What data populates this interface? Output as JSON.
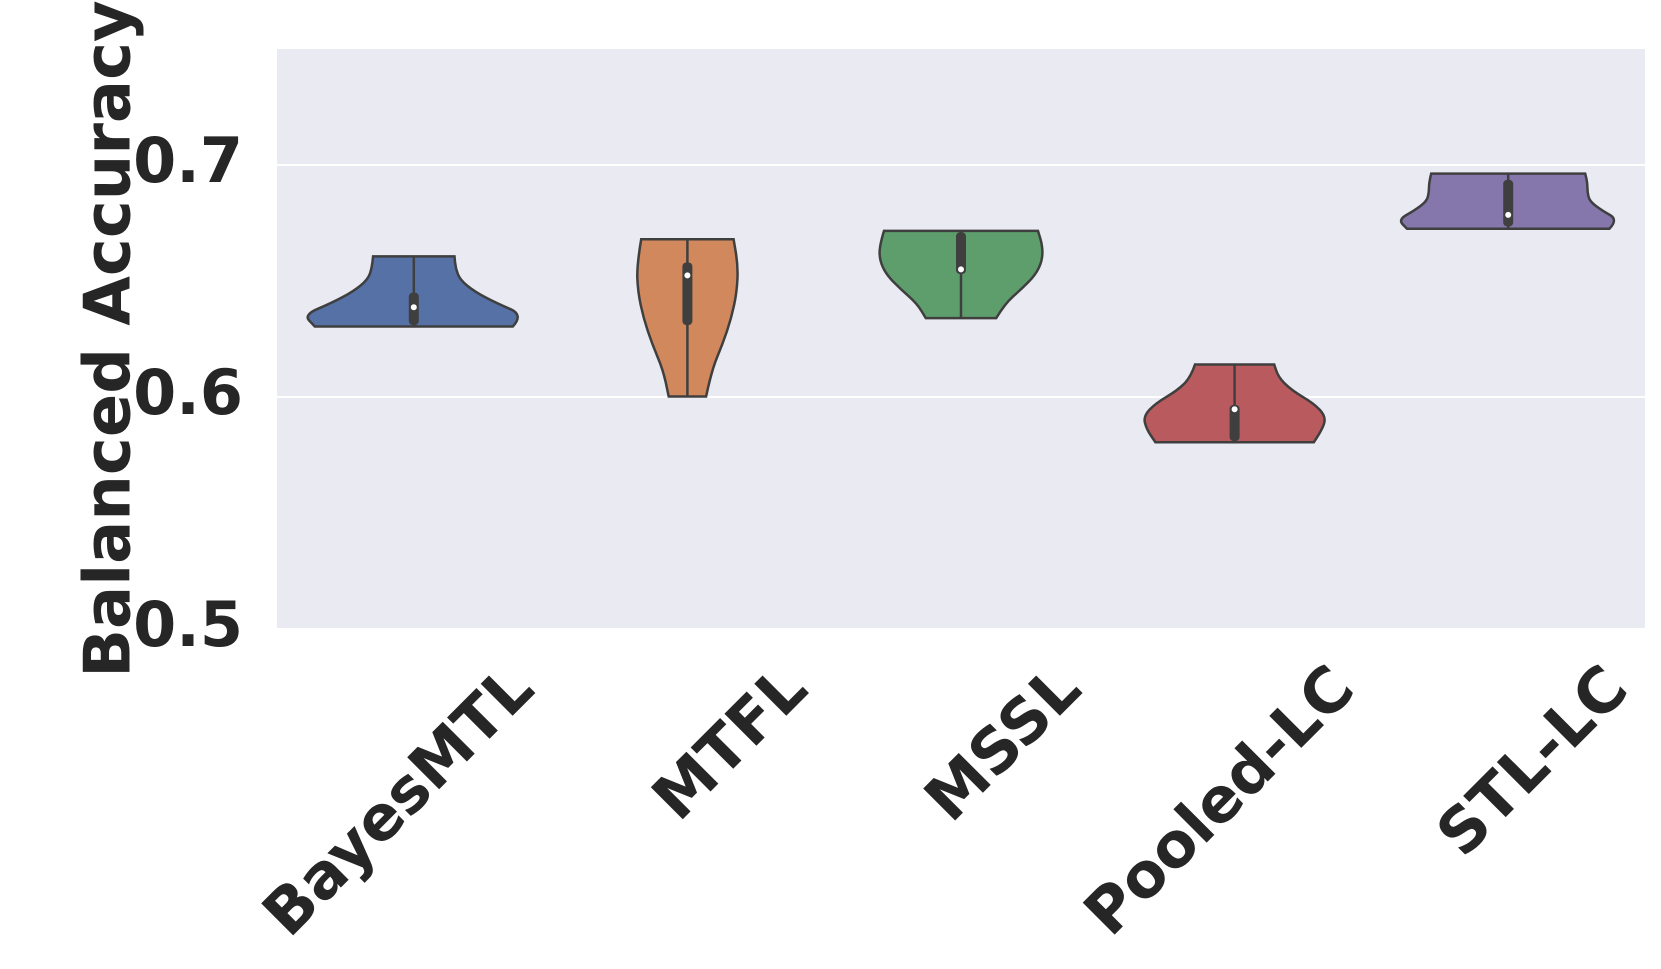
{
  "chart_data": {
    "type": "violin",
    "ylabel": "Balanced Accuracy",
    "ylim": [
      0.5,
      0.75
    ],
    "yticks": [
      0.5,
      0.6,
      0.7
    ],
    "grid": true,
    "violins": [
      {
        "name": "BayesMTL",
        "color": "#5571a6",
        "min": 0.6304,
        "q1": 0.631,
        "median": 0.6387,
        "q3": 0.645,
        "max": 0.6606,
        "density": [
          0.9,
          1.0,
          0.75,
          0.55,
          0.42,
          0.38,
          0.37
        ]
      },
      {
        "name": "MTFL",
        "color": "#d1885c",
        "min": 0.6002,
        "q1": 0.631,
        "median": 0.6524,
        "q3": 0.658,
        "max": 0.668,
        "density": [
          0.17,
          0.22,
          0.32,
          0.4,
          0.45,
          0.46,
          0.42
        ]
      },
      {
        "name": "MSSL",
        "color": "#5d9e6c",
        "min": 0.634,
        "q1": 0.653,
        "median": 0.655,
        "q3": 0.671,
        "max": 0.6716,
        "density": [
          0.32,
          0.4,
          0.55,
          0.68,
          0.74,
          0.74,
          0.7
        ]
      },
      {
        "name": "Pooled-LC",
        "color": "#b95a5e",
        "min": 0.5805,
        "q1": 0.581,
        "median": 0.5947,
        "q3": 0.5966,
        "max": 0.614,
        "density": [
          0.72,
          0.8,
          0.83,
          0.72,
          0.52,
          0.4,
          0.36
        ]
      },
      {
        "name": "STL-LC",
        "color": "#8577ab",
        "min": 0.6725,
        "q1": 0.6735,
        "median": 0.6785,
        "q3": 0.6936,
        "max": 0.6963,
        "density": [
          0.92,
          1.0,
          0.85,
          0.74,
          0.72,
          0.72,
          0.7
        ]
      }
    ]
  }
}
